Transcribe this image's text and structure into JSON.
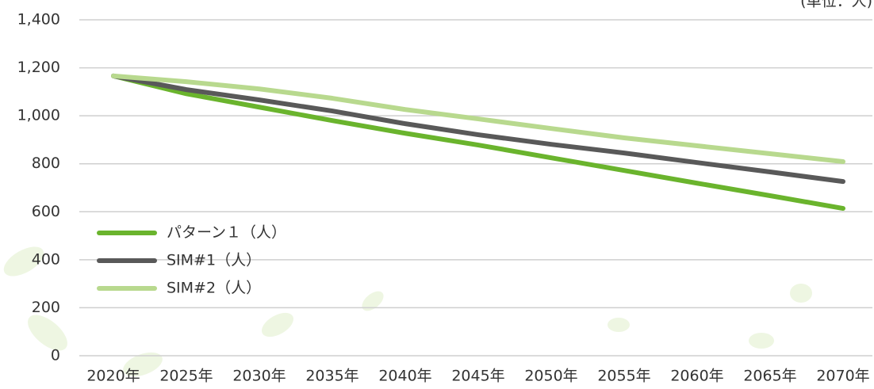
{
  "chart_data": {
    "type": "line",
    "title": "(単位：人)",
    "categories": [
      "2020年",
      "2025年",
      "2030年",
      "2035年",
      "2040年",
      "2045年",
      "2050年",
      "2055年",
      "2060年",
      "2065年",
      "2070年"
    ],
    "series": [
      {
        "name": "パターン１（人）",
        "color": "#6ab42d",
        "values": [
          1166,
          1092,
          1036,
          980,
          927,
          878,
          825,
          772,
          719,
          667,
          614
        ]
      },
      {
        "name": "SIM#1（人）",
        "color": "#595959",
        "values": [
          1166,
          1109,
          1066,
          1020,
          967,
          921,
          881,
          845,
          805,
          766,
          726
        ]
      },
      {
        "name": "SIM#2（人）",
        "color": "#b8d98e",
        "values": [
          1166,
          1142,
          1112,
          1073,
          1026,
          987,
          947,
          908,
          875,
          842,
          809
        ]
      }
    ],
    "ylim": [
      0,
      1400
    ],
    "yticks": [
      0,
      200,
      400,
      600,
      800,
      {
        "value": 1000,
        "label": "1,000"
      },
      {
        "value": 1200,
        "label": "1,200"
      },
      {
        "value": 1400,
        "label": "1,400"
      }
    ],
    "grid": true
  }
}
